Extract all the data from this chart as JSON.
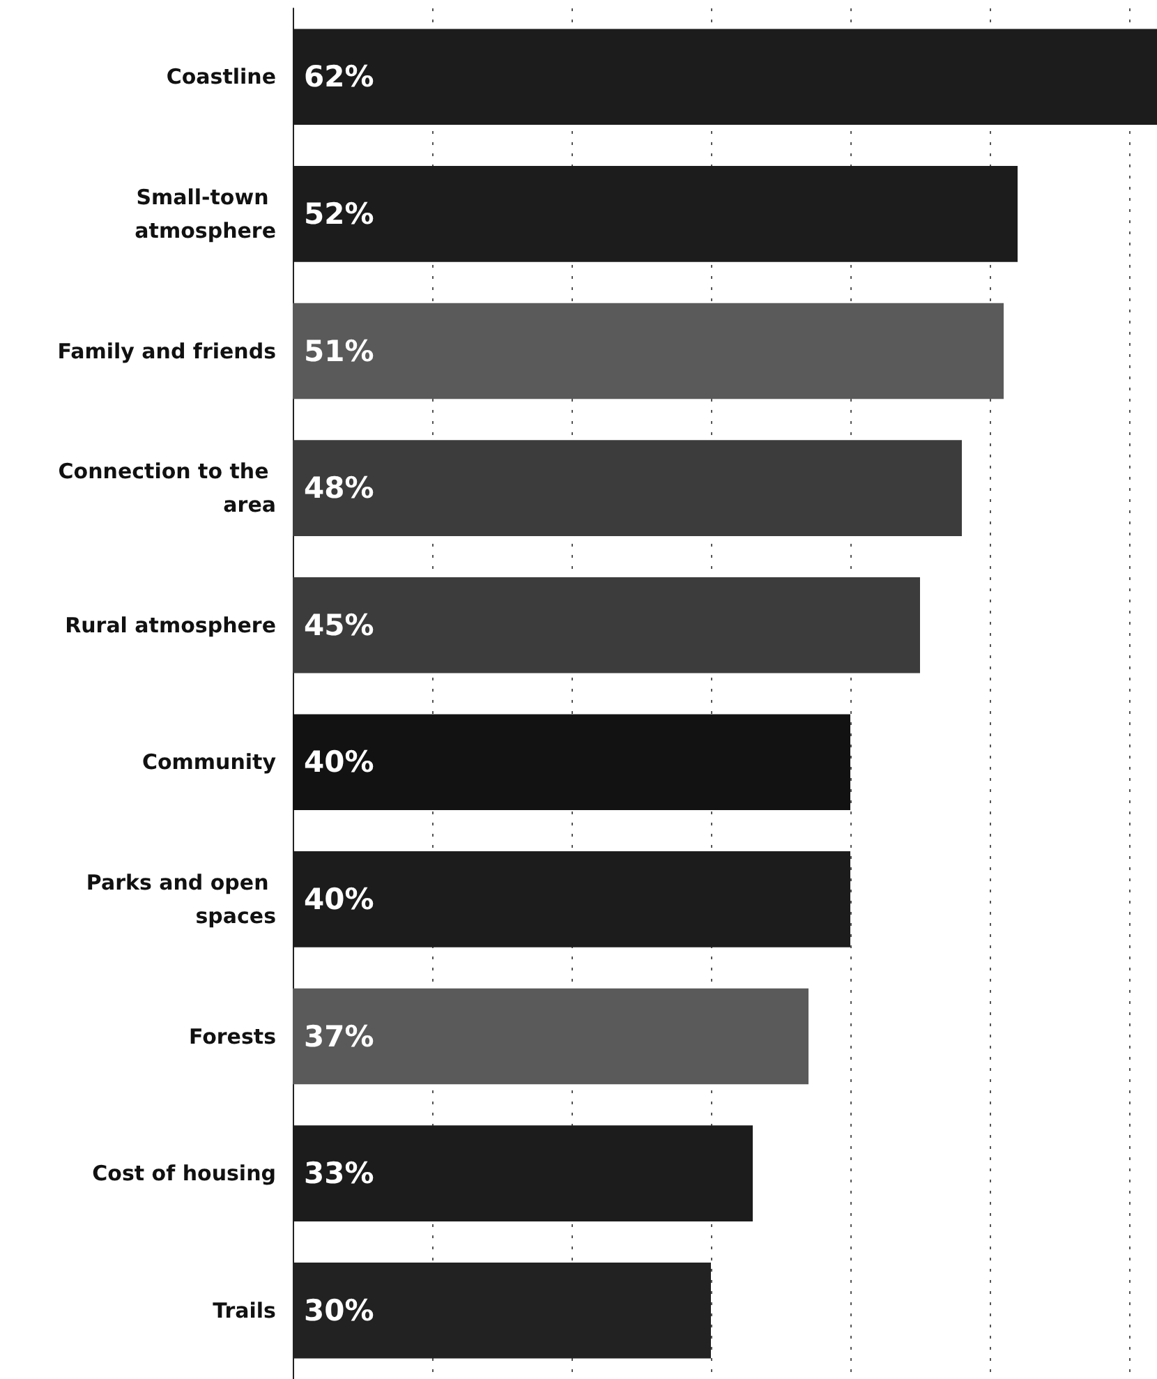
{
  "chart_data": {
    "type": "bar",
    "orientation": "horizontal",
    "categories": [
      "Coastline",
      "Small-town atmosphere",
      "Family and friends",
      "Connection to the area",
      "Rural atmosphere",
      "Community",
      "Parks and open spaces",
      "Forests",
      "Cost of housing",
      "Trails"
    ],
    "values": [
      62,
      52,
      51,
      48,
      45,
      40,
      40,
      37,
      33,
      30
    ],
    "colors": [
      "#1c1c1c",
      "#1c1c1c",
      "#5a5a5a",
      "#3c3c3c",
      "#3c3c3c",
      "#121212",
      "#1c1c1c",
      "#5a5a5a",
      "#1c1c1c",
      "#222222"
    ],
    "value_labels": [
      "62%",
      "52%",
      "51%",
      "48%",
      "45%",
      "40%",
      "40%",
      "37%",
      "33%",
      "30%"
    ],
    "xlim": [
      0,
      62
    ],
    "xticks": [
      {
        "value": 10,
        "label": null
      },
      {
        "value": 20,
        "label": null
      },
      {
        "value": 30,
        "label": null
      },
      {
        "value": 40,
        "label": null
      },
      {
        "value": 50,
        "label": null
      },
      {
        "value": 60,
        "label": null
      }
    ],
    "grid": "x",
    "tick_labels": "y"
  }
}
